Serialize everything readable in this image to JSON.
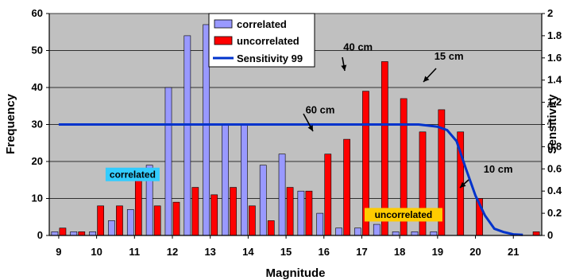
{
  "chart_data": {
    "type": "bar",
    "xlabel": "Magnitude",
    "ylabel": "Frequency",
    "y2label": "Sensitivity",
    "xlim": [
      8.75,
      21.75
    ],
    "ylim": [
      0,
      60
    ],
    "y2lim": [
      0,
      2
    ],
    "xticks": [
      "9",
      "10",
      "11",
      "12",
      "13",
      "14",
      "15",
      "16",
      "17",
      "18",
      "19",
      "20",
      "21"
    ],
    "yticks": [
      "0",
      "10",
      "20",
      "30",
      "40",
      "50",
      "60"
    ],
    "y2ticks": [
      "0",
      "0.2",
      "0.4",
      "0.6",
      "0.8",
      "1",
      "1.2",
      "1.4",
      "1.6",
      "1.8",
      "2"
    ],
    "grid": true,
    "legend_position": "top-center",
    "colors": {
      "plot_background": "#c0c0c0",
      "correlated": "#9999ff",
      "uncorrelated": "#ff0000",
      "sensitivity": "#0033cc",
      "correlated_box": "#33ccff",
      "uncorrelated_box": "#ffcc00"
    },
    "x": [
      9,
      9.5,
      10,
      10.5,
      11,
      11.5,
      12,
      12.5,
      13,
      13.5,
      14,
      14.5,
      15,
      15.5,
      16,
      16.5,
      17,
      17.5,
      18,
      18.5,
      19,
      19.5,
      20,
      20.5,
      21,
      21.5
    ],
    "series": [
      {
        "name": "correlated",
        "values": [
          1,
          1,
          1,
          4,
          7,
          19,
          40,
          54,
          57,
          30,
          30,
          19,
          22,
          12,
          6,
          2,
          2,
          3,
          1,
          1,
          1,
          0,
          0,
          0,
          0,
          0
        ]
      },
      {
        "name": "uncorrelated",
        "values": [
          2,
          1,
          8,
          8,
          15,
          8,
          9,
          13,
          11,
          13,
          8,
          4,
          13,
          12,
          22,
          26,
          39,
          47,
          37,
          28,
          34,
          28,
          10,
          0,
          0,
          1
        ]
      }
    ],
    "line_series": {
      "name": "Sensitivity 99",
      "axis": "right",
      "x": [
        9,
        17.5,
        18,
        18.5,
        19,
        19.25,
        19.5,
        19.75,
        20,
        20.25,
        20.5,
        20.75,
        21,
        21.25
      ],
      "values": [
        1,
        1,
        1,
        1,
        0.98,
        0.95,
        0.85,
        0.6,
        0.36,
        0.18,
        0.06,
        0.03,
        0.01,
        0.005
      ]
    },
    "annotations": [
      {
        "text": "60 cm",
        "x": 15.9,
        "y": 33
      },
      {
        "text": "40 cm",
        "x": 16.9,
        "y": 50
      },
      {
        "text": "15 cm",
        "x": 19.3,
        "y": 47.5
      },
      {
        "text": "10 cm",
        "x": 20.6,
        "y": 17
      }
    ],
    "boxed_labels": [
      {
        "text": "correlated",
        "x": 10.95,
        "y": 16.5,
        "color": "correlated_box"
      },
      {
        "text": "uncorrelated",
        "x": 18.1,
        "y": 5.6,
        "color": "uncorrelated_box"
      }
    ]
  }
}
